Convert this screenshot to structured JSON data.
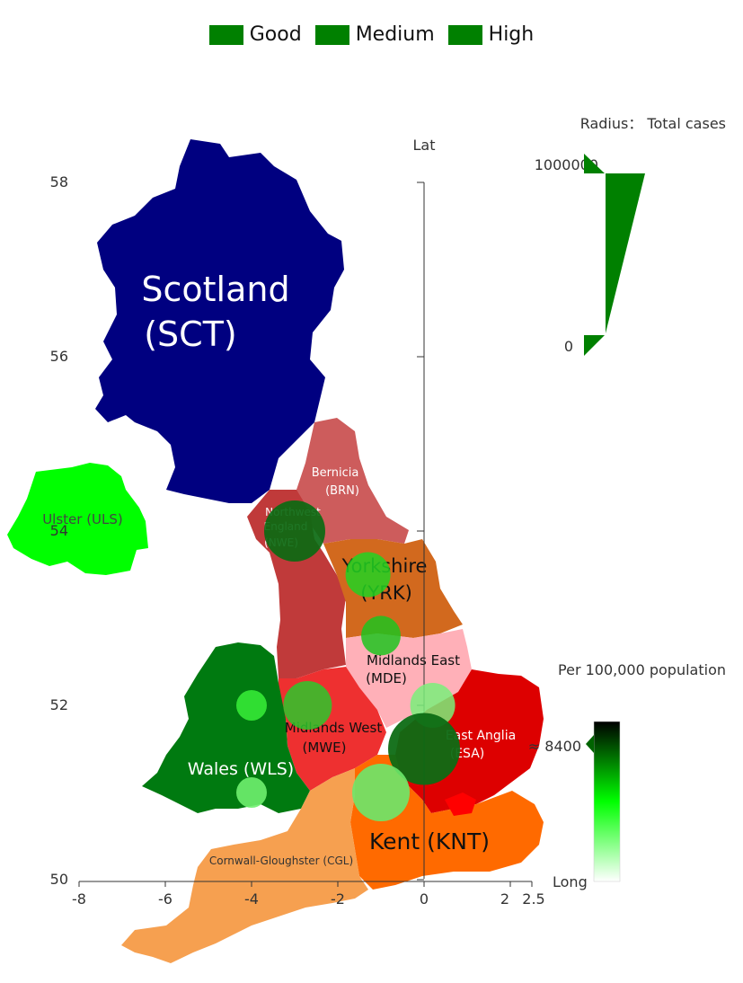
{
  "legend": {
    "items": [
      {
        "label": "Good",
        "color": "#008000"
      },
      {
        "label": "Medium",
        "color": "#008000"
      },
      {
        "label": "High",
        "color": "#008000"
      }
    ]
  },
  "axes": {
    "x_label": "Long",
    "y_label": "Lat",
    "x_ticks": [
      "-8",
      "-6",
      "-4",
      "-2",
      "0",
      "2",
      "2.5"
    ],
    "y_ticks": [
      "58",
      "56",
      "54",
      "52",
      "50"
    ]
  },
  "regions": [
    {
      "id": "sct",
      "label": "Scotland (SCT)",
      "color": "#000080"
    },
    {
      "id": "uls",
      "label": "Ulster (ULS)",
      "color": "#00ff00"
    },
    {
      "id": "brn",
      "label": "Bernicia (BRN)",
      "color": "#cd5c5c"
    },
    {
      "id": "nwe",
      "label": "Northwest England (NWE)",
      "color": "#c03a3a"
    },
    {
      "id": "yrk",
      "label": "Yorkshire (YRK)",
      "color": "#d2691e"
    },
    {
      "id": "mde",
      "label": "Midlands East (MDE)",
      "color": "#ffb0b8"
    },
    {
      "id": "mwe",
      "label": "Midlands West (MWE)",
      "color": "#ee3030"
    },
    {
      "id": "wls",
      "label": "Wales (WLS)",
      "color": "#007a10"
    },
    {
      "id": "esa",
      "label": "East Anglia (ESA)",
      "color": "#dd0000"
    },
    {
      "id": "knt",
      "label": "Kent (KNT)",
      "color": "#ff6a00"
    },
    {
      "id": "cgl",
      "label": "Cornwall-Gloughster (CGL)",
      "color": "#f6a050"
    }
  ],
  "size_legend": {
    "title": "Radius： Total cases",
    "max_label": "1000000",
    "min_label": "0",
    "color": "#008000"
  },
  "color_legend": {
    "title": "Per 100,000 population",
    "pointer_label": "≈ 8400",
    "color_low": "#ffffff",
    "color_mid": "#00ff00",
    "color_high": "#000000"
  },
  "chart_data": {
    "type": "scatter",
    "x": [
      -3,
      -1.3,
      -1,
      -4,
      -2.7,
      0.2,
      0,
      -1,
      -4
    ],
    "y": [
      54,
      53.5,
      52.8,
      52,
      52,
      52,
      51.5,
      51,
      51
    ],
    "size_scale": "Total cases",
    "color_scale": "Per 100,000 population",
    "xlim": [
      -8,
      2.5
    ],
    "ylim": [
      50,
      58
    ],
    "legend_position": "top-center"
  }
}
